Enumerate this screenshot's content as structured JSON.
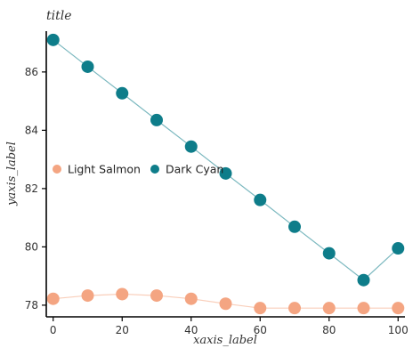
{
  "chart_data": {
    "type": "line",
    "title": "title",
    "xlabel": "xaxis_label",
    "ylabel": "yaxis_label",
    "xlim": [
      -2,
      102
    ],
    "ylim": [
      77.6,
      87.4
    ],
    "xticks": [
      0,
      20,
      40,
      60,
      80,
      100
    ],
    "yticks": [
      78,
      80,
      82,
      84,
      86
    ],
    "grid": false,
    "legend": "center-left",
    "series": [
      {
        "name": "Light Salmon",
        "color": "#F4A582",
        "marker": "circle",
        "x": [
          0,
          10,
          20,
          30,
          40,
          50,
          60,
          70,
          80,
          90,
          100
        ],
        "values": [
          78.22,
          78.33,
          78.38,
          78.33,
          78.22,
          78.05,
          77.9,
          77.9,
          77.9,
          77.9,
          77.9
        ]
      },
      {
        "name": "Dark Cyan",
        "color": "#0E7D8A",
        "marker": "circle",
        "x": [
          0,
          10,
          20,
          30,
          40,
          50,
          60,
          70,
          80,
          90,
          100
        ],
        "values": [
          87.1,
          86.18,
          85.27,
          84.35,
          83.44,
          82.52,
          81.61,
          80.69,
          79.78,
          78.86,
          79.95
        ]
      }
    ]
  }
}
